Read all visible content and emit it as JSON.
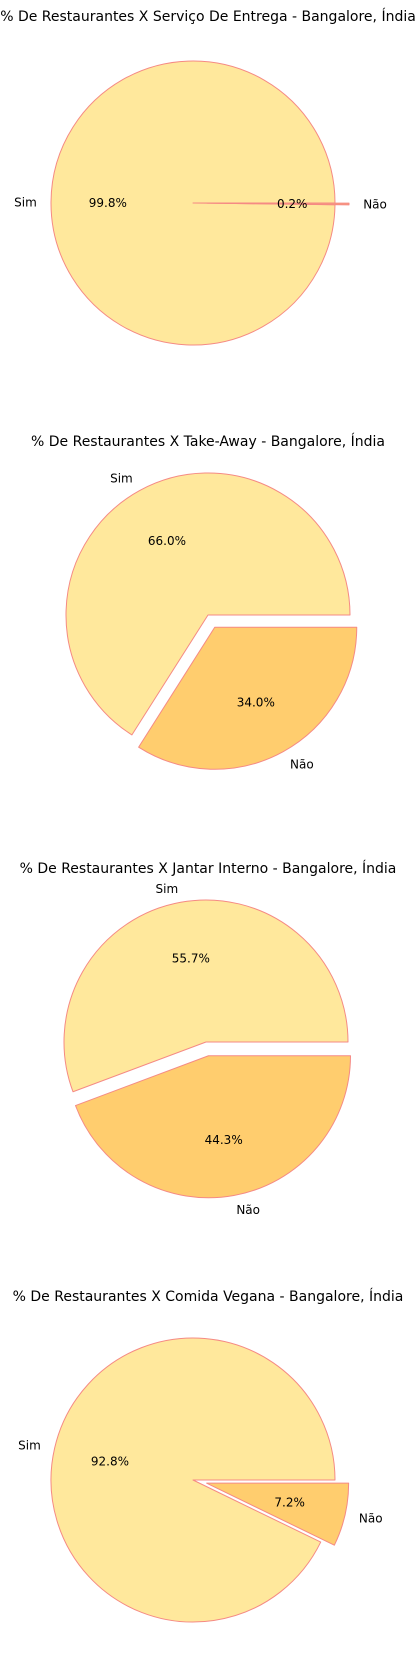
{
  "chart_data": [
    {
      "type": "pie",
      "title": "% De Restaurantes X Serviço De Entrega - Bangalore, Índia",
      "categories": [
        "Sim",
        "Não"
      ],
      "values": [
        99.8,
        0.2
      ],
      "value_labels": [
        "99.8%",
        "0.2%"
      ],
      "exploded_slice": "Não"
    },
    {
      "type": "pie",
      "title": "% De Restaurantes X Take-Away - Bangalore, Índia",
      "categories": [
        "Sim",
        "Não"
      ],
      "values": [
        66.0,
        34.0
      ],
      "value_labels": [
        "66.0%",
        "34.0%"
      ],
      "exploded_slice": "Não"
    },
    {
      "type": "pie",
      "title": "% De Restaurantes X Jantar Interno - Bangalore, Índia",
      "categories": [
        "Sim",
        "Não"
      ],
      "values": [
        55.7,
        44.3
      ],
      "value_labels": [
        "55.7%",
        "44.3%"
      ],
      "exploded_slice": "Não"
    },
    {
      "type": "pie",
      "title": "% De Restaurantes X Comida Vegana - Bangalore, Índia",
      "categories": [
        "Sim",
        "Não"
      ],
      "values": [
        92.8,
        7.2
      ],
      "value_labels": [
        "92.8%",
        "7.2%"
      ],
      "exploded_slice": "Não"
    }
  ],
  "colors": {
    "sim_fill": "#FFE89C",
    "nao_fill": "#FFCD6E",
    "nao_fill_thin": "#F9A07E",
    "edge": "#F58A84",
    "text": "#000000"
  }
}
